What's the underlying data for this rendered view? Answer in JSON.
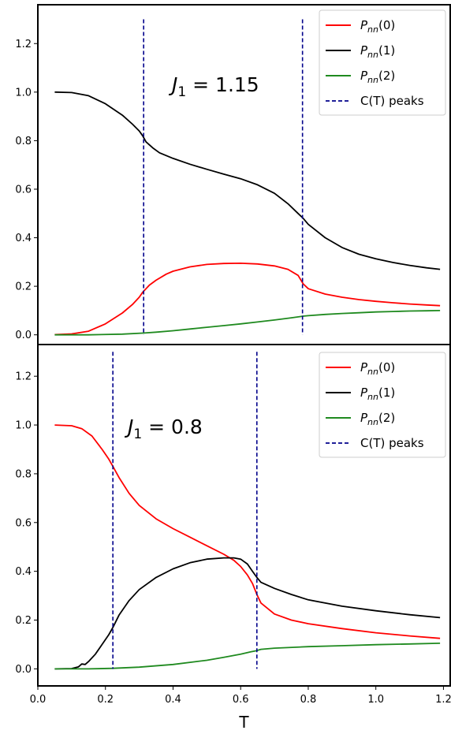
{
  "chart_data": [
    {
      "type": "line",
      "annotation": {
        "symbol": "J",
        "subscript": "1",
        "value": " = 1.15"
      },
      "xlabel": "",
      "ylabel": "",
      "xlim": [
        0.0,
        1.22
      ],
      "ylim": [
        -0.04,
        1.36
      ],
      "yticks": [
        "0.0",
        "0.2",
        "0.4",
        "0.6",
        "0.8",
        "1.0",
        "1.2"
      ],
      "ytick_values": [
        0.0,
        0.2,
        0.4,
        0.6,
        0.8,
        1.0,
        1.2
      ],
      "legend_position": "top-right",
      "series": [
        {
          "name": "P",
          "sub": "nn",
          "arg": "(0)",
          "color": "#ff0000",
          "x": [
            0.05,
            0.1,
            0.15,
            0.2,
            0.25,
            0.28,
            0.3,
            0.31,
            0.33,
            0.35,
            0.38,
            0.4,
            0.45,
            0.5,
            0.55,
            0.6,
            0.65,
            0.7,
            0.74,
            0.77,
            0.785,
            0.8,
            0.85,
            0.9,
            0.95,
            1.0,
            1.05,
            1.1,
            1.15,
            1.19
          ],
          "y": [
            0.001,
            0.004,
            0.015,
            0.045,
            0.09,
            0.125,
            0.155,
            0.175,
            0.205,
            0.225,
            0.25,
            0.262,
            0.28,
            0.29,
            0.294,
            0.295,
            0.292,
            0.284,
            0.27,
            0.245,
            0.21,
            0.19,
            0.168,
            0.155,
            0.145,
            0.138,
            0.132,
            0.127,
            0.123,
            0.12
          ]
        },
        {
          "name": "P",
          "sub": "nn",
          "arg": "(1)",
          "color": "#000000",
          "x": [
            0.05,
            0.1,
            0.15,
            0.2,
            0.25,
            0.28,
            0.3,
            0.31,
            0.32,
            0.34,
            0.36,
            0.4,
            0.45,
            0.5,
            0.55,
            0.6,
            0.65,
            0.7,
            0.74,
            0.77,
            0.785,
            0.8,
            0.85,
            0.9,
            0.95,
            1.0,
            1.05,
            1.1,
            1.15,
            1.19
          ],
          "y": [
            1.0,
            0.998,
            0.985,
            0.952,
            0.905,
            0.868,
            0.84,
            0.82,
            0.795,
            0.77,
            0.75,
            0.727,
            0.703,
            0.682,
            0.662,
            0.643,
            0.618,
            0.583,
            0.54,
            0.5,
            0.48,
            0.455,
            0.4,
            0.36,
            0.332,
            0.313,
            0.298,
            0.286,
            0.276,
            0.27
          ]
        },
        {
          "name": "P",
          "sub": "nn",
          "arg": "(2)",
          "color": "#1f8a1f",
          "x": [
            0.05,
            0.15,
            0.25,
            0.31,
            0.35,
            0.4,
            0.45,
            0.5,
            0.55,
            0.6,
            0.65,
            0.7,
            0.75,
            0.785,
            0.8,
            0.85,
            0.9,
            0.95,
            1.0,
            1.05,
            1.1,
            1.15,
            1.19
          ],
          "y": [
            0.0,
            0.0,
            0.003,
            0.007,
            0.011,
            0.017,
            0.024,
            0.031,
            0.038,
            0.045,
            0.053,
            0.061,
            0.07,
            0.077,
            0.079,
            0.084,
            0.088,
            0.091,
            0.094,
            0.096,
            0.098,
            0.099,
            0.1
          ]
        }
      ],
      "peaks": {
        "label": "C(T) peaks",
        "color": "#00008b",
        "x": [
          0.313,
          0.783
        ],
        "y_top": 1.3
      }
    },
    {
      "type": "line",
      "annotation": {
        "symbol": "J",
        "subscript": "1",
        "value": " = 0.8"
      },
      "xlabel": "T",
      "ylabel": "",
      "xlim": [
        0.0,
        1.22
      ],
      "ylim": [
        -0.07,
        1.33
      ],
      "yticks": [
        "0.0",
        "0.2",
        "0.4",
        "0.6",
        "0.8",
        "1.0",
        "1.2"
      ],
      "ytick_values": [
        0.0,
        0.2,
        0.4,
        0.6,
        0.8,
        1.0,
        1.2
      ],
      "xticks": [
        "0.0",
        "0.2",
        "0.4",
        "0.6",
        "0.8",
        "1.0",
        "1.2"
      ],
      "xtick_values": [
        0.0,
        0.2,
        0.4,
        0.6,
        0.8,
        1.0,
        1.2
      ],
      "legend_position": "top-right",
      "series": [
        {
          "name": "P",
          "sub": "nn",
          "arg": "(0)",
          "color": "#ff0000",
          "x": [
            0.05,
            0.1,
            0.13,
            0.16,
            0.19,
            0.21,
            0.222,
            0.24,
            0.27,
            0.3,
            0.35,
            0.4,
            0.45,
            0.5,
            0.55,
            0.58,
            0.6,
            0.62,
            0.635,
            0.648,
            0.66,
            0.7,
            0.75,
            0.8,
            0.9,
            1.0,
            1.1,
            1.19
          ],
          "y": [
            1.0,
            0.997,
            0.985,
            0.955,
            0.9,
            0.86,
            0.83,
            0.785,
            0.72,
            0.67,
            0.615,
            0.575,
            0.54,
            0.505,
            0.47,
            0.445,
            0.42,
            0.385,
            0.35,
            0.305,
            0.27,
            0.225,
            0.2,
            0.185,
            0.165,
            0.148,
            0.135,
            0.125
          ]
        },
        {
          "name": "P",
          "sub": "nn",
          "arg": "(1)",
          "color": "#000000",
          "x": [
            0.05,
            0.1,
            0.12,
            0.13,
            0.14,
            0.15,
            0.17,
            0.19,
            0.21,
            0.222,
            0.24,
            0.27,
            0.3,
            0.35,
            0.4,
            0.45,
            0.5,
            0.55,
            0.58,
            0.6,
            0.62,
            0.635,
            0.648,
            0.66,
            0.7,
            0.75,
            0.8,
            0.9,
            1.0,
            1.1,
            1.19
          ],
          "y": [
            0.0,
            0.001,
            0.008,
            0.02,
            0.018,
            0.03,
            0.06,
            0.1,
            0.14,
            0.17,
            0.22,
            0.28,
            0.325,
            0.375,
            0.41,
            0.435,
            0.45,
            0.455,
            0.455,
            0.45,
            0.43,
            0.4,
            0.375,
            0.355,
            0.33,
            0.305,
            0.283,
            0.257,
            0.238,
            0.222,
            0.21
          ]
        },
        {
          "name": "P",
          "sub": "nn",
          "arg": "(2)",
          "color": "#1f8a1f",
          "x": [
            0.05,
            0.15,
            0.222,
            0.3,
            0.4,
            0.5,
            0.55,
            0.6,
            0.63,
            0.648,
            0.66,
            0.7,
            0.8,
            0.9,
            1.0,
            1.1,
            1.19
          ],
          "y": [
            0.0,
            0.0,
            0.002,
            0.007,
            0.018,
            0.035,
            0.047,
            0.06,
            0.07,
            0.075,
            0.08,
            0.085,
            0.091,
            0.095,
            0.099,
            0.102,
            0.105
          ]
        }
      ],
      "peaks": {
        "label": "C(T) peaks",
        "color": "#00008b",
        "x": [
          0.222,
          0.648
        ],
        "y_top": 1.3
      }
    }
  ]
}
